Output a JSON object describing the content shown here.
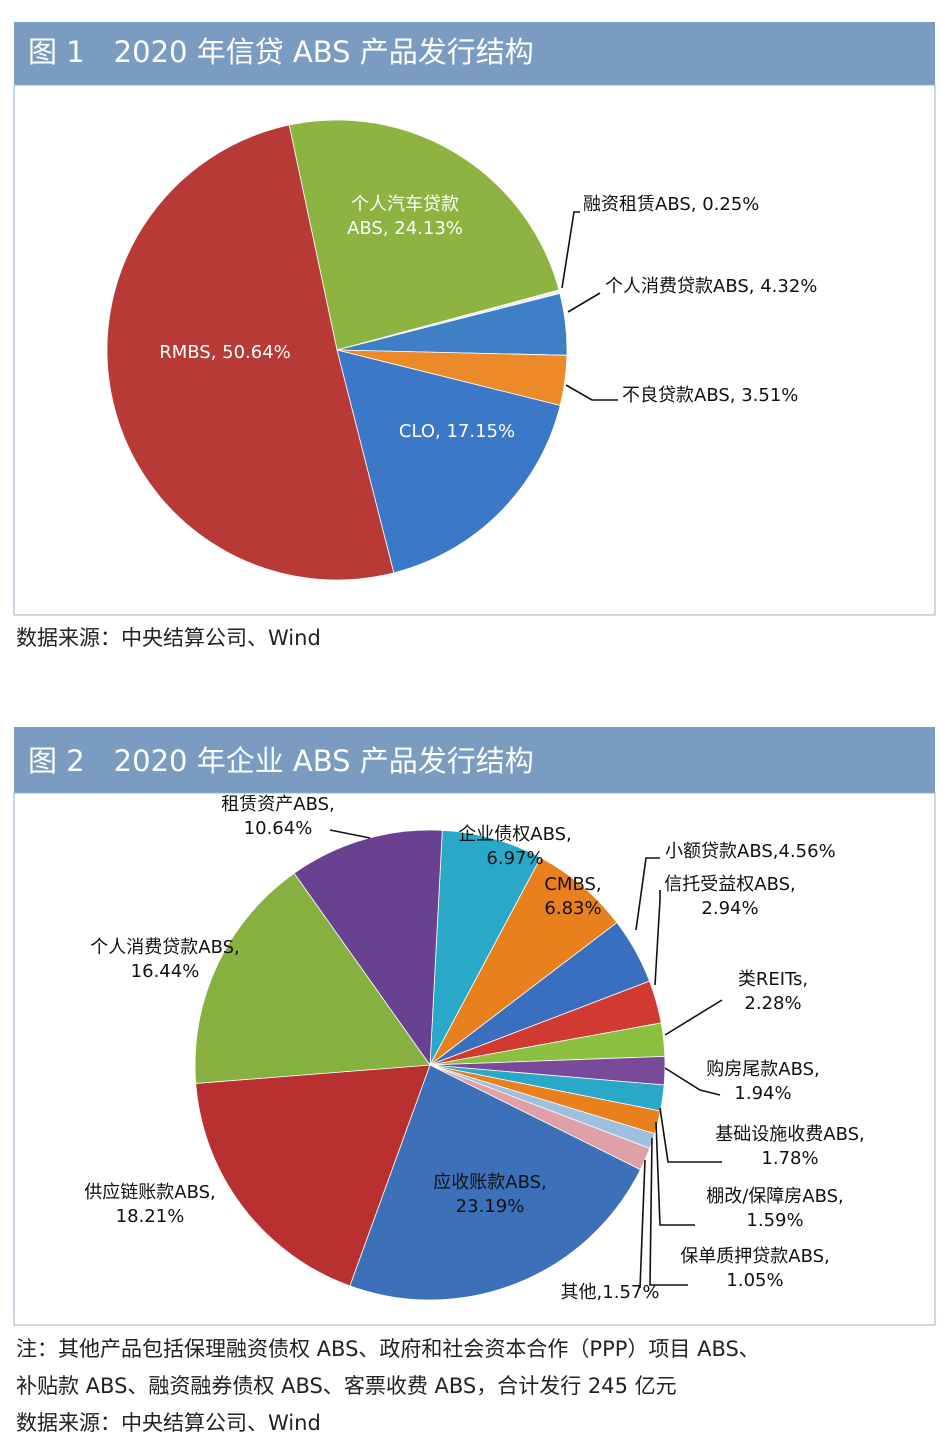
{
  "chart_data": [
    {
      "type": "pie",
      "title": "图 1　2020 年信贷 ABS 产品发行结构",
      "start_angle": -12,
      "values": [
        24.13,
        0.25,
        4.32,
        3.51,
        17.15,
        50.64
      ],
      "value_labels": [
        "个人汽车贷款\nABS, 24.13%",
        "融资租赁ABS, 0.25%",
        "个人消费贷款ABS, 4.32%",
        "不良贷款ABS, 3.51%",
        "CLO, 17.15%",
        "RMBS, 50.64%"
      ],
      "colors": [
        "#8db340",
        "#eeeeee",
        "#3f7fc5",
        "#ec8a2a",
        "#3b78c7",
        "#b83a36"
      ]
    },
    {
      "type": "pie",
      "title": "图 2　2020 年企业 ABS 产品发行结构",
      "start_angle": 3,
      "values": [
        6.97,
        6.83,
        4.56,
        2.94,
        2.28,
        1.94,
        1.78,
        1.59,
        1.05,
        1.57,
        23.19,
        18.21,
        16.44,
        10.64
      ],
      "value_labels": [
        "企业债权ABS,\n6.97%",
        "CMBS,\n6.83%",
        "小额贷款ABS,4.56%",
        "信托受益权ABS,\n2.94%",
        "类REITs,\n2.28%",
        "购房尾款ABS,\n1.94%",
        "基础设施收费ABS,\n1.78%",
        "棚改/保障房ABS,\n1.59%",
        "保单质押贷款ABS,\n1.05%",
        "其他,1.57%",
        "应收账款ABS,\n23.19%",
        "供应链账款ABS,\n18.21%",
        "个人消费贷款ABS,\n16.44%",
        "租赁资产ABS,\n10.64%"
      ],
      "colors": [
        "#2aa8c8",
        "#e8801e",
        "#3a6fc0",
        "#d03a30",
        "#8cc040",
        "#7a4a9a",
        "#2aa8c8",
        "#e8801e",
        "#9ec0e0",
        "#e0a0a8",
        "#3c70b8",
        "#b83030",
        "#86b040",
        "#6a4090"
      ]
    }
  ],
  "captions": [
    "数据来源：中央结算公司、Wind",
    "注：其他产品包括保理融资债权 ABS、政府和社会资本合作（PPP）项目 ABS、",
    "补贴款 ABS、融资融券债权 ABS、客票收费 ABS，合计发行 245 亿元",
    "数据来源：中央结算公司、Wind"
  ]
}
